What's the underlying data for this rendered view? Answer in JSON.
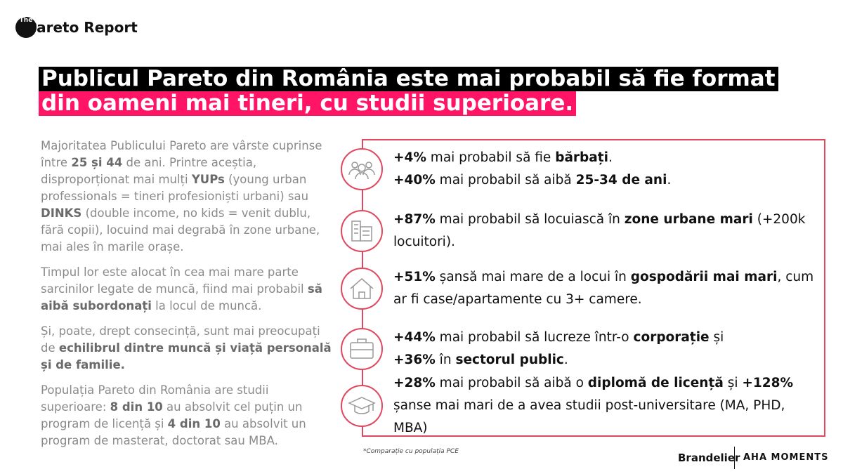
{
  "header": {
    "logo_small": "The",
    "logo": "Pareto Report"
  },
  "title": {
    "line1": "Publicul Pareto din România este mai probabil să fie format",
    "line2": "din oameni mai tineri, cu studii superioare."
  },
  "left": {
    "paragraphs": [
      [
        {
          "text": "Majoritatea Publicului Pareto are vârste cuprinse între "
        },
        {
          "text": "25 și 44",
          "bold": true
        },
        {
          "text": " de ani. Printre aceștia, disproporționat mai mulți "
        },
        {
          "text": "YUPs",
          "bold": true
        },
        {
          "text": " (young urban professionals = tineri profesioniști urbani) sau "
        },
        {
          "text": "DINKS",
          "bold": true
        },
        {
          "text": " (double income, no kids = venit dublu, fără copii), locuind mai degrabă în zone urbane, mai ales în marile orașe."
        }
      ],
      [
        {
          "text": "Timpul lor este alocat în cea mai mare parte sarcinilor legate de muncă, fiind mai probabil "
        },
        {
          "text": "să aibă subordonați",
          "bold": true
        },
        {
          "text": " la locul de muncă."
        }
      ],
      [
        {
          "text": "Și, poate, drept consecință, sunt mai preocupați de "
        },
        {
          "text": "echilibrul dintre muncă și viață personală și de familie.",
          "bold": true
        }
      ],
      [
        {
          "text": "Populația Pareto din România are studii superioare: "
        },
        {
          "text": "8 din 10",
          "bold": true
        },
        {
          "text": " au absolvit cel puțin un program de licență și "
        },
        {
          "text": "4 din 10",
          "bold": true
        },
        {
          "text": " au absolvit un program de masterat, doctorat sau MBA."
        }
      ]
    ]
  },
  "items": [
    [
      [
        {
          "text": "+4%",
          "bold": true
        },
        {
          "text": " mai probabil să fie "
        },
        {
          "text": "bărbați",
          "bold": true
        },
        {
          "text": "."
        }
      ],
      [
        {
          "text": "+40%",
          "bold": true
        },
        {
          "text": " mai probabil să aibă "
        },
        {
          "text": "25-34 de ani",
          "bold": true
        },
        {
          "text": "."
        }
      ]
    ],
    [
      [
        {
          "text": "+87%",
          "bold": true
        },
        {
          "text": " mai probabil să locuiască în "
        },
        {
          "text": "zone urbane mari",
          "bold": true
        },
        {
          "text": " (+200k locuitori)."
        }
      ]
    ],
    [
      [
        {
          "text": "+51%",
          "bold": true
        },
        {
          "text": " șansă mai mare de a locui în "
        },
        {
          "text": "gospodării mai mari",
          "bold": true
        },
        {
          "text": ", cum ar fi case/apartamente cu 3+ camere."
        }
      ]
    ],
    [
      [
        {
          "text": "+44%",
          "bold": true
        },
        {
          "text": " mai probabil să lucreze într-o "
        },
        {
          "text": "corporație",
          "bold": true
        },
        {
          "text": " și"
        }
      ],
      [
        {
          "text": "+36%",
          "bold": true
        },
        {
          "text": " în "
        },
        {
          "text": "sectorul public",
          "bold": true
        },
        {
          "text": "."
        }
      ]
    ],
    [
      [
        {
          "text": "+28%",
          "bold": true
        },
        {
          "text": " mai probabil să aibă o "
        },
        {
          "text": "diplomă de licență",
          "bold": true
        },
        {
          "text": " și "
        },
        {
          "text": "+128%",
          "bold": true
        },
        {
          "text": " șanse mai mari de a avea studii post-universitare (MA, PHD, MBA)"
        }
      ]
    ]
  ],
  "footnote": "*Comparație cu populația PCE",
  "footer": {
    "brand1": "Brandelier",
    "brand2": "AHA MOMENTS"
  }
}
